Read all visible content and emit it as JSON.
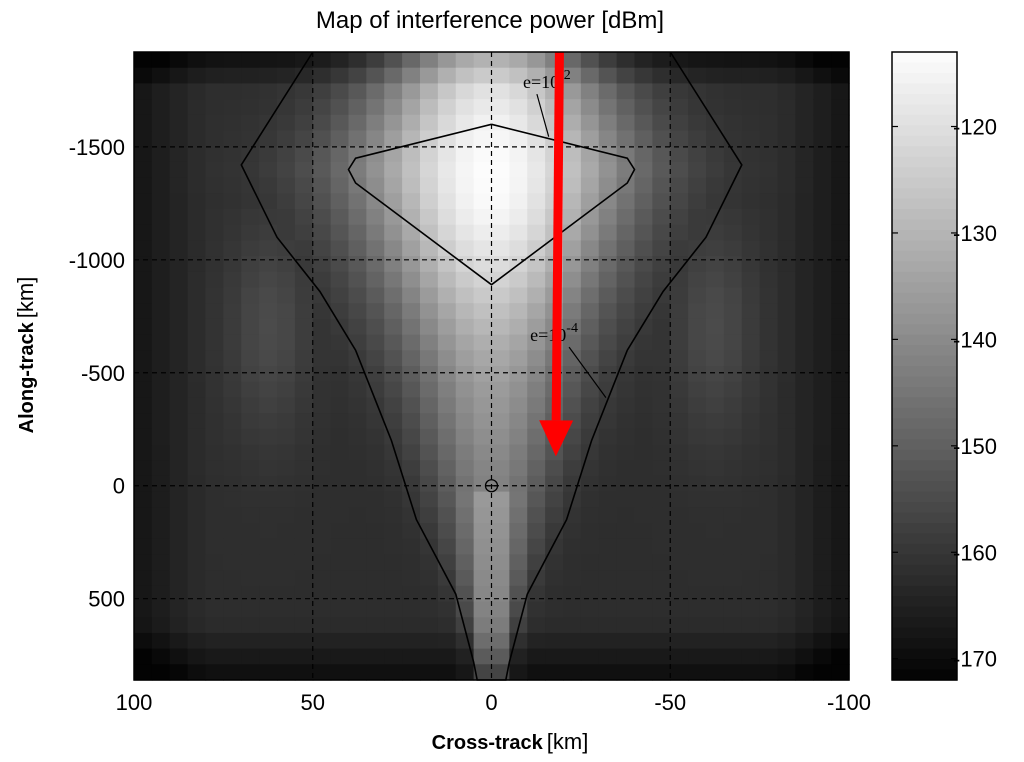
{
  "chart_data": {
    "type": "heatmap",
    "title": "Map of interference power [dBm]",
    "xlabel": "Cross-track",
    "xlabel_unit": "[km]",
    "ylabel": "Along-track",
    "ylabel_unit": "[km]",
    "xlim": [
      100,
      -100
    ],
    "ylim": [
      -1920,
      860
    ],
    "x_ticks": [
      100,
      50,
      0,
      -50,
      -100
    ],
    "y_ticks": [
      -1500,
      -1000,
      -500,
      0,
      500
    ],
    "grid": true,
    "grid_style": "dashed",
    "colormap": "gray",
    "colorbar": {
      "range": [
        -172,
        -113
      ],
      "ticks": [
        -120,
        -130,
        -140,
        -150,
        -160,
        -170
      ]
    },
    "contours": [
      {
        "label_base": "e=10",
        "label_exp": "-2",
        "points": [
          [
            0,
            -1600
          ],
          [
            38,
            -1450
          ],
          [
            40,
            -1400
          ],
          [
            38,
            -1340
          ],
          [
            0,
            -890
          ],
          [
            -38,
            -1340
          ],
          [
            -40,
            -1400
          ],
          [
            -38,
            -1450
          ],
          [
            0,
            -1600
          ]
        ]
      },
      {
        "label_base": "e=10",
        "label_exp": "-4",
        "points": [
          [
            -50,
            -1920
          ],
          [
            -70,
            -1420
          ],
          [
            -60,
            -1100
          ],
          [
            -48,
            -860
          ],
          [
            -38,
            -600
          ],
          [
            -28,
            -200
          ],
          [
            -21,
            150
          ],
          [
            -15,
            330
          ],
          [
            -10,
            480
          ],
          [
            -5,
            780
          ],
          [
            -4,
            860
          ],
          [
            4,
            860
          ],
          [
            5,
            780
          ],
          [
            10,
            480
          ],
          [
            15,
            330
          ],
          [
            21,
            150
          ],
          [
            28,
            -200
          ],
          [
            38,
            -600
          ],
          [
            48,
            -860
          ],
          [
            60,
            -1100
          ],
          [
            70,
            -1420
          ],
          [
            50,
            -1920
          ]
        ]
      }
    ],
    "contour_label_positions": [
      {
        "anchor": [
          -15.5,
          -1760
        ],
        "leader_to": [
          -16,
          -1545
        ]
      },
      {
        "anchor": [
          -17.5,
          -640
        ],
        "leader_to": [
          -32,
          -390
        ]
      }
    ],
    "markers": [
      {
        "type": "circle-plus",
        "x": 0,
        "y": 0
      }
    ],
    "arrow": {
      "color": "#ff0000",
      "from": [
        -19,
        -1920
      ],
      "to": [
        -18,
        -130
      ]
    },
    "intensity_model": {
      "center_max_dbm": -113,
      "background_dbm": -162,
      "corner_dbm": -172,
      "side_lobe_dbm": -142
    }
  }
}
